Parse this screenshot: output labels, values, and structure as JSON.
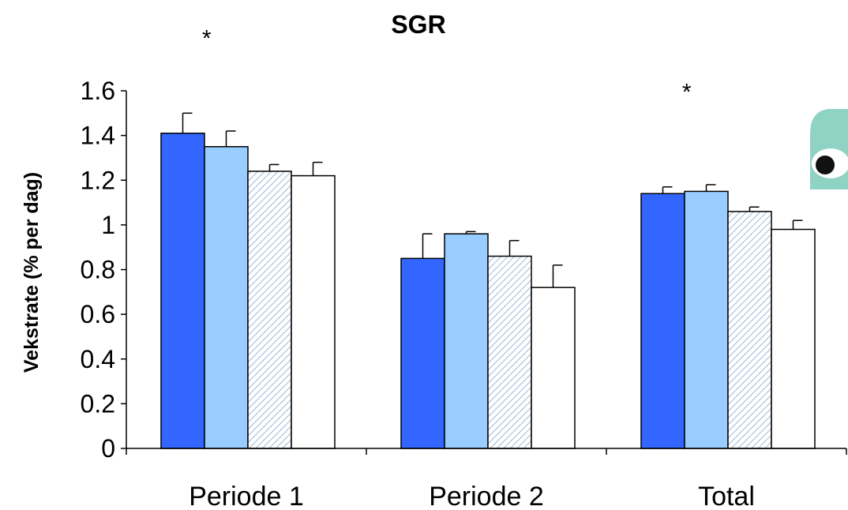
{
  "chart_data": {
    "type": "bar",
    "title": "SGR",
    "xlabel": "",
    "ylabel": "Vekstrate (% per dag)",
    "ylim": [
      0,
      1.6
    ],
    "yticks": [
      "0",
      "0.2",
      "0.4",
      "0.6",
      "0.8",
      "1",
      "1.2",
      "1.4",
      "1.6"
    ],
    "categories": [
      "Periode 1",
      "Periode 2",
      "Total"
    ],
    "grid": false,
    "legend": "none",
    "series": [
      {
        "values": [
          1.41,
          0.85,
          1.14
        ],
        "errors": [
          0.09,
          0.11,
          0.03
        ],
        "color": "#3366ff",
        "pattern": "solid"
      },
      {
        "values": [
          1.35,
          0.96,
          1.15
        ],
        "errors": [
          0.07,
          0.01,
          0.03
        ],
        "color": "#99ccff",
        "pattern": "solid"
      },
      {
        "values": [
          1.24,
          0.86,
          1.06
        ],
        "errors": [
          0.03,
          0.07,
          0.02
        ],
        "color": "#ffffff",
        "pattern": "diagonal-hatch"
      },
      {
        "values": [
          1.22,
          0.72,
          0.98
        ],
        "errors": [
          0.06,
          0.1,
          0.04
        ],
        "color": "#ffffff",
        "pattern": "solid"
      }
    ],
    "annotations": [
      {
        "text": "*",
        "category": "Periode 1",
        "y": 1.87
      },
      {
        "text": "*",
        "category": "Total",
        "y": 1.63
      }
    ]
  },
  "decoration": {
    "icon": "logo-icon",
    "colors": {
      "tile": "#8fd3c5",
      "spot": "#111111",
      "ring": "#ffffff"
    }
  }
}
